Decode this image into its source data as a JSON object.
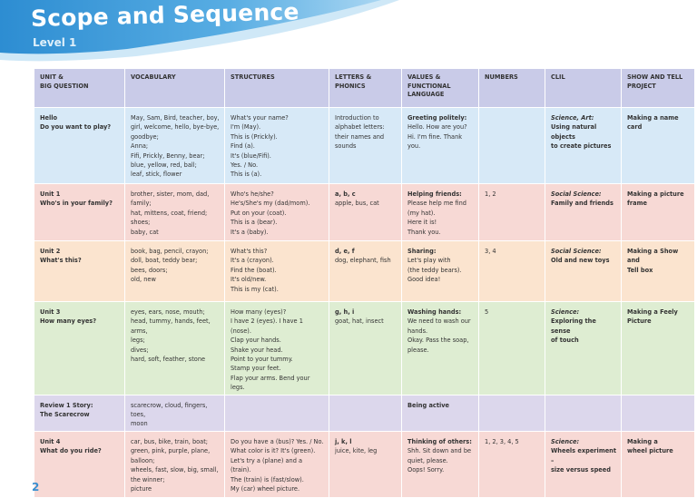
{
  "header": {
    "title": "Scope and Sequence",
    "subtitle": "Level 1"
  },
  "table": {
    "header": [
      [
        "UNIT &",
        "BIG QUESTION"
      ],
      [
        "VOCABULARY"
      ],
      [
        "STRUCTURES"
      ],
      [
        "LETTERS &",
        "PHONICS"
      ],
      [
        "VALUES &",
        "FUNCTIONAL",
        "LANGUAGE"
      ],
      [
        "NUMBERS"
      ],
      [
        "CLIL"
      ],
      [
        "SHOW AND TELL",
        "PROJECT"
      ]
    ],
    "rows": [
      [
        [
          "Hello",
          "Do you want to play?"
        ],
        [
          "May, Sam, Bird, teacher, boy,",
          "girl, welcome, hello, bye-bye,",
          "goodbye;",
          "Anna;",
          "Fifi, Prickly, Benny, bear;",
          "blue, yellow, red, ball;",
          "leaf, stick, flower"
        ],
        [
          "What's your name?",
          "I'm (May).",
          "This is (Prickly).",
          "Find (a).",
          "It's (blue/Fifi).",
          "Yes. / No.",
          "This is (a)."
        ],
        [
          "Introduction to",
          "alphabet letters:",
          "their names and",
          "sounds"
        ],
        [
          "Greeting politely:",
          "Hello. How are you?",
          "Hi. I'm fine. Thank you."
        ],
        [],
        [
          "Science, Art:",
          "Using natural objects",
          "to create pictures"
        ],
        [
          "Making a name card"
        ]
      ],
      [
        [
          "Unit 1",
          "Who's in your family?"
        ],
        [
          "brother, sister, mom, dad, family;",
          "hat, mittens, coat, friend;",
          "shoes;",
          "baby, cat"
        ],
        [
          "Who's he/she?",
          "He's/She's my (dad/mom).",
          "Put on your (coat).",
          "This is a (bear).",
          "It's a (baby)."
        ],
        [
          "a, b, c",
          "apple, bus, cat"
        ],
        [
          "Helping friends:",
          "Please help me find",
          "(my hat).",
          "Here it is!",
          "Thank you."
        ],
        [
          "1, 2"
        ],
        [
          "Social Science:",
          "Family and friends"
        ],
        [
          "Making a picture",
          "frame"
        ]
      ],
      [
        [
          "Unit 2",
          "What's this?"
        ],
        [
          "book, bag, pencil, crayon;",
          "doll, boat, teddy bear;",
          "bees, doors;",
          "old, new"
        ],
        [
          "What's this?",
          "It's a (crayon).",
          "Find the (boat).",
          "It's old/new.",
          "This is my (cat)."
        ],
        [
          "d, e, f",
          "dog, elephant, fish"
        ],
        [
          "Sharing:",
          "Let's play with",
          "(the teddy bears).",
          "Good idea!"
        ],
        [
          "3, 4"
        ],
        [
          "Social Science:",
          "Old and new toys"
        ],
        [
          "Making a Show and",
          "Tell box"
        ]
      ],
      [
        [
          "Unit 3",
          "How many eyes?"
        ],
        [
          "eyes, ears, nose, mouth;",
          "head, tummy, hands, feet, arms,",
          "legs;",
          "dives;",
          "hard, soft, feather, stone"
        ],
        [
          "How many (eyes)?",
          "I have 2 (eyes). I have 1 (nose).",
          "Clap your hands.",
          "Shake your head.",
          "Point to your tummy.",
          "Stamp your feet.",
          "Flap your arms. Bend your legs."
        ],
        [
          "g, h, i",
          "goat, hat, insect"
        ],
        [
          "Washing hands:",
          "We need to wash our",
          "hands.",
          "Okay. Pass the soap,",
          "please."
        ],
        [
          "5"
        ],
        [
          "Science:",
          "Exploring the sense",
          "of touch"
        ],
        [
          "Making a Feely",
          "Picture"
        ]
      ],
      [
        [
          "Review 1 Story:",
          "The Scarecrow"
        ],
        [
          "scarecrow, cloud, fingers, toes,",
          "moon"
        ],
        [],
        [],
        [
          "Being active"
        ],
        [],
        [],
        []
      ],
      [
        [
          "Unit 4",
          "What do you ride?"
        ],
        [
          "car, bus, bike, train, boat;",
          "green, pink, purple, plane,",
          "balloon;",
          "wheels, fast, slow, big, small,",
          "the winner;",
          "picture"
        ],
        [
          "Do you have a (bus)? Yes. / No.",
          "What color is it? It's (green).",
          "Let's try a (plane) and a (train).",
          "The (train) is (fast/slow).",
          "My (car) wheel picture."
        ],
        [
          "j, k, l",
          "juice, kite, leg"
        ],
        [
          "Thinking of others:",
          "Shh. Sit down and be",
          "quiet, please.",
          "Oops! Sorry."
        ],
        [
          "1, 2, 3, 4, 5"
        ],
        [
          "Science:",
          "Wheels experiment –",
          "size versus speed"
        ],
        [
          "Making a",
          "wheel picture"
        ]
      ]
    ]
  },
  "footer": {
    "page_number": "2"
  }
}
